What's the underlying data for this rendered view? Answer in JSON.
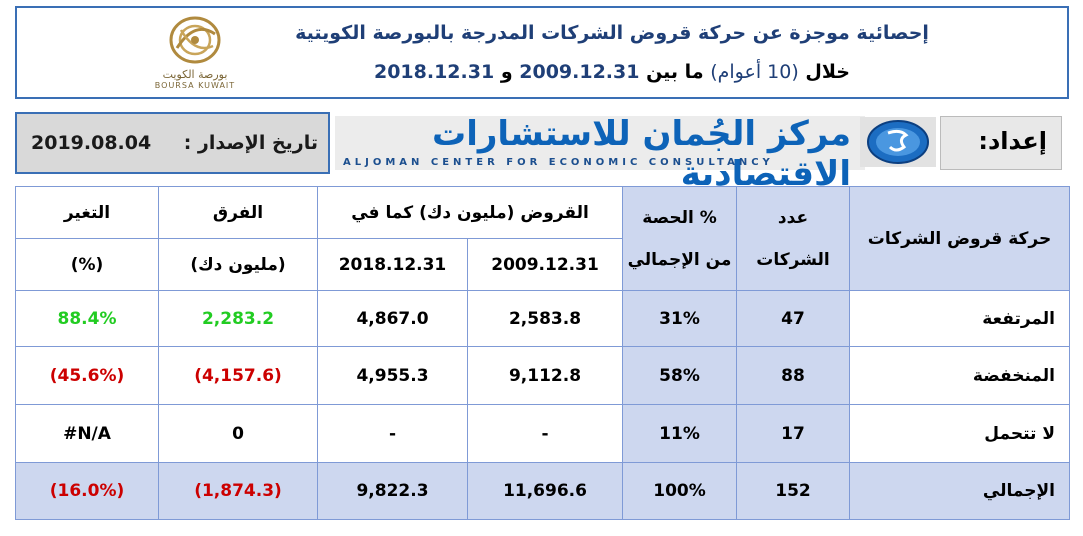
{
  "header": {
    "title": "إحصائية موجزة عن حركة قروض الشركات المدرجة بالبورصة الكويتية",
    "subtitle_prefix": "خلال",
    "subtitle_period": "(10 أعوام)",
    "subtitle_between": "ما بين",
    "date_from": "2009.12.31",
    "subtitle_and": "و",
    "date_to": "2018.12.31",
    "logo_arabic": "بورصة الكويت",
    "logo_english": "BOURSA KUWAIT",
    "logo_color": "#b08a3e"
  },
  "band": {
    "issue_label": "تاريخ الإصدار :",
    "issue_date": "2019.08.04",
    "center_arabic": "مركز الجُمان للاستشارات الاقتصادية",
    "center_english": "ALJOMAN CENTER FOR ECONOMIC CONSULTANCY",
    "prepared_by": "إعداد:"
  },
  "table": {
    "headers": {
      "movement": "حركة قروض الشركات",
      "count_1": "عدد",
      "count_2": "الشركات",
      "share_1": "الحصة %",
      "share_2": "من الإجمالي",
      "loans": "القروض (مليون دك) كما في",
      "date_2009": "2009.12.31",
      "date_2018": "2018.12.31",
      "diff_1": "الفرق",
      "diff_2": "(مليون دك)",
      "change_1": "التغير",
      "change_2": "(%)"
    },
    "rows": [
      {
        "label": "المرتفعة",
        "count": "47",
        "share": "31%",
        "loans_2009": "2,583.8",
        "loans_2018": "4,867.0",
        "diff": "2,283.2",
        "change": "88.4%"
      },
      {
        "label": "المنخفضة",
        "count": "88",
        "share": "58%",
        "loans_2009": "9,112.8",
        "loans_2018": "4,955.3",
        "diff": "(4,157.6)",
        "change": "(45.6%)"
      },
      {
        "label": "لا تتحمل",
        "count": "17",
        "share": "11%",
        "loans_2009": "-",
        "loans_2018": "-",
        "diff": "0",
        "change": "#N/A"
      },
      {
        "label": "الإجمالي",
        "count": "152",
        "share": "100%",
        "loans_2009": "11,696.6",
        "loans_2018": "9,822.3",
        "diff": "(1,874.3)",
        "change": "(16.0%)"
      }
    ]
  }
}
